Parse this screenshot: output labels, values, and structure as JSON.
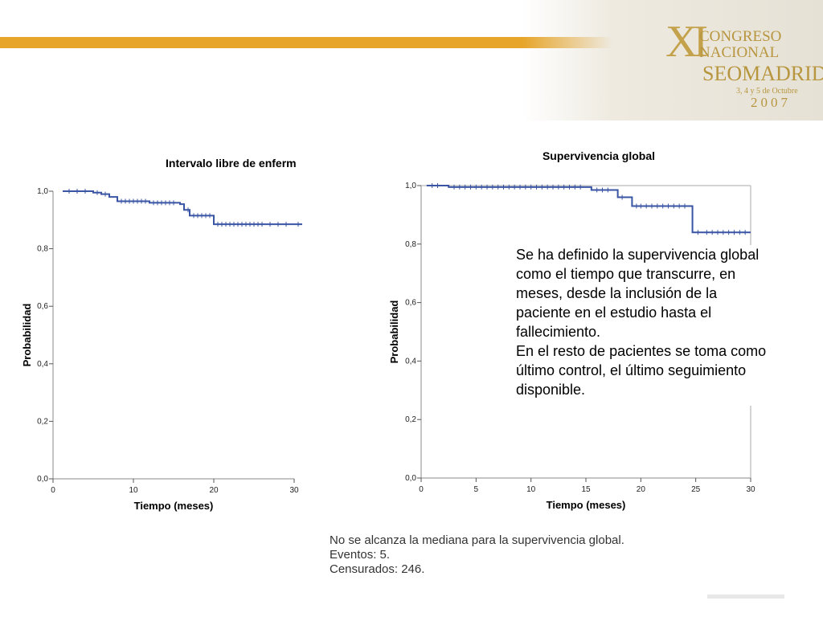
{
  "logo": {
    "numeral": "XI",
    "line1": "CONGRESO",
    "line2": "NACIONAL",
    "line3": "SEOMADRID",
    "dates": "3, 4 y 5 de Octubre",
    "year": "2007"
  },
  "chart_data": [
    {
      "type": "line",
      "title": "Intervalo libre de enferm",
      "xlabel": "Tiempo (meses)",
      "ylabel": "Probabilidad",
      "xlim": [
        0,
        30
      ],
      "ylim": [
        0,
        1.0
      ],
      "xticks": [
        "0",
        "10",
        "20",
        "30"
      ],
      "yticks": [
        "0,0",
        "0,2",
        "0,4",
        "0,6",
        "0,8",
        "1,0"
      ],
      "step": true,
      "series": [
        {
          "color": "#3a55a4",
          "x": [
            1.2,
            5,
            6,
            7,
            8,
            12,
            15.8,
            16.3,
            17,
            20,
            31
          ],
          "y": [
            1.0,
            0.995,
            0.99,
            0.98,
            0.965,
            0.96,
            0.955,
            0.935,
            0.915,
            0.885,
            0.885
          ]
        }
      ],
      "censored": [
        {
          "x": [
            2,
            3,
            4,
            5.5,
            6.5,
            8.5,
            9,
            9.5,
            10,
            10.5,
            11,
            11.5,
            12.5,
            13,
            13.5,
            14,
            14.5,
            15,
            16.8,
            17.5,
            18,
            18.5,
            19,
            19.5,
            20.5,
            21,
            21.5,
            22,
            22.5,
            23,
            23.5,
            24,
            24.5,
            25,
            25.5,
            26,
            27,
            28,
            29,
            30.5
          ]
        }
      ]
    },
    {
      "type": "line",
      "title": "Supervivencia global",
      "xlabel": "Tiempo (meses)",
      "ylabel": "Probabilidad",
      "xlim": [
        0,
        30
      ],
      "ylim": [
        0,
        1.0
      ],
      "xticks": [
        "0",
        "5",
        "10",
        "15",
        "20",
        "25",
        "30"
      ],
      "yticks": [
        "0,0",
        "0,2",
        "0,4",
        "0,6",
        "0,8",
        "1,0"
      ],
      "step": true,
      "series": [
        {
          "color": "#3a55a4",
          "x": [
            0.5,
            2.5,
            15.5,
            17.9,
            19.2,
            24.7,
            30
          ],
          "y": [
            1.0,
            0.995,
            0.985,
            0.96,
            0.93,
            0.84,
            0.84
          ]
        }
      ],
      "censored": [
        {
          "x": [
            1,
            1.5,
            3,
            3.5,
            4,
            4.5,
            5,
            5.5,
            6,
            6.5,
            7,
            7.5,
            8,
            8.5,
            9,
            9.5,
            10,
            10.5,
            11,
            11.5,
            12,
            12.5,
            13,
            13.5,
            14,
            14.5,
            16,
            16.5,
            17,
            18.3,
            19.6,
            20,
            20.5,
            21,
            21.5,
            22,
            22.5,
            23,
            23.5,
            24,
            25.2,
            26,
            26.5,
            27,
            27.5,
            28,
            28.5,
            29,
            29.5
          ]
        }
      ]
    }
  ],
  "description": {
    "lines": [
      "Se ha definido la supervivencia global",
      "como el tiempo que transcurre, en",
      "meses, desde la inclusión de la",
      "paciente en el estudio hasta el",
      "fallecimiento.",
      "En el resto de pacientes se toma como",
      "último control, el último seguimiento",
      "disponible."
    ]
  },
  "notes": {
    "line1": "No se alcanza la mediana para la supervivencia global.",
    "line2": "Eventos: 5.",
    "line3": "Censurados: 246."
  }
}
